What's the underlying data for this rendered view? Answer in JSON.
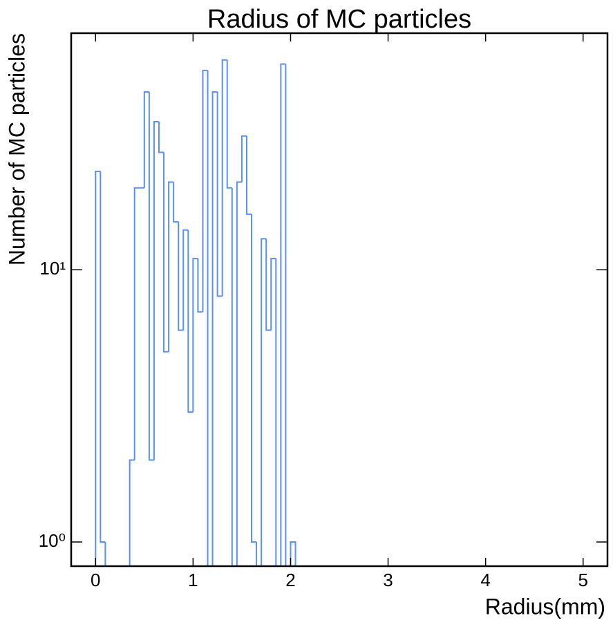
{
  "chart_data": {
    "type": "histogram",
    "title": "Radius of MC particles",
    "x_label": "Radius(mm)",
    "y_label": "Number of MC particles",
    "bins": [
      0.0,
      0.05,
      0.1,
      0.15,
      0.2,
      0.25,
      0.3,
      0.35,
      0.4,
      0.45,
      0.5,
      0.55,
      0.6,
      0.65,
      0.7,
      0.75,
      0.8,
      0.85,
      0.9,
      0.95,
      1.0,
      1.05,
      1.1,
      1.15,
      1.2,
      1.25,
      1.3,
      1.35,
      1.4,
      1.45,
      1.5,
      1.55,
      1.6,
      1.65,
      1.7,
      1.75,
      1.8,
      1.85,
      1.9,
      1.95,
      2.0,
      2.05
    ],
    "values": [
      23,
      1,
      0,
      0,
      0,
      0,
      0,
      2,
      20,
      20,
      45,
      2,
      35,
      27,
      5,
      21,
      15,
      6,
      14,
      3,
      11,
      7,
      54,
      0,
      45,
      8,
      59,
      20,
      0,
      21,
      31,
      16,
      1,
      0,
      13,
      6,
      11,
      0,
      57,
      0,
      1
    ],
    "color": "#5790fc",
    "xlim": [
      -0.25,
      5.25
    ],
    "xticks": [
      0,
      1,
      2,
      3,
      4,
      5
    ],
    "ylim": [
      0.815,
      74
    ],
    "y_scale": "log",
    "yticks": [
      {
        "value": 1,
        "label": "10⁰"
      },
      {
        "value": 10,
        "label": "10¹"
      }
    ]
  }
}
